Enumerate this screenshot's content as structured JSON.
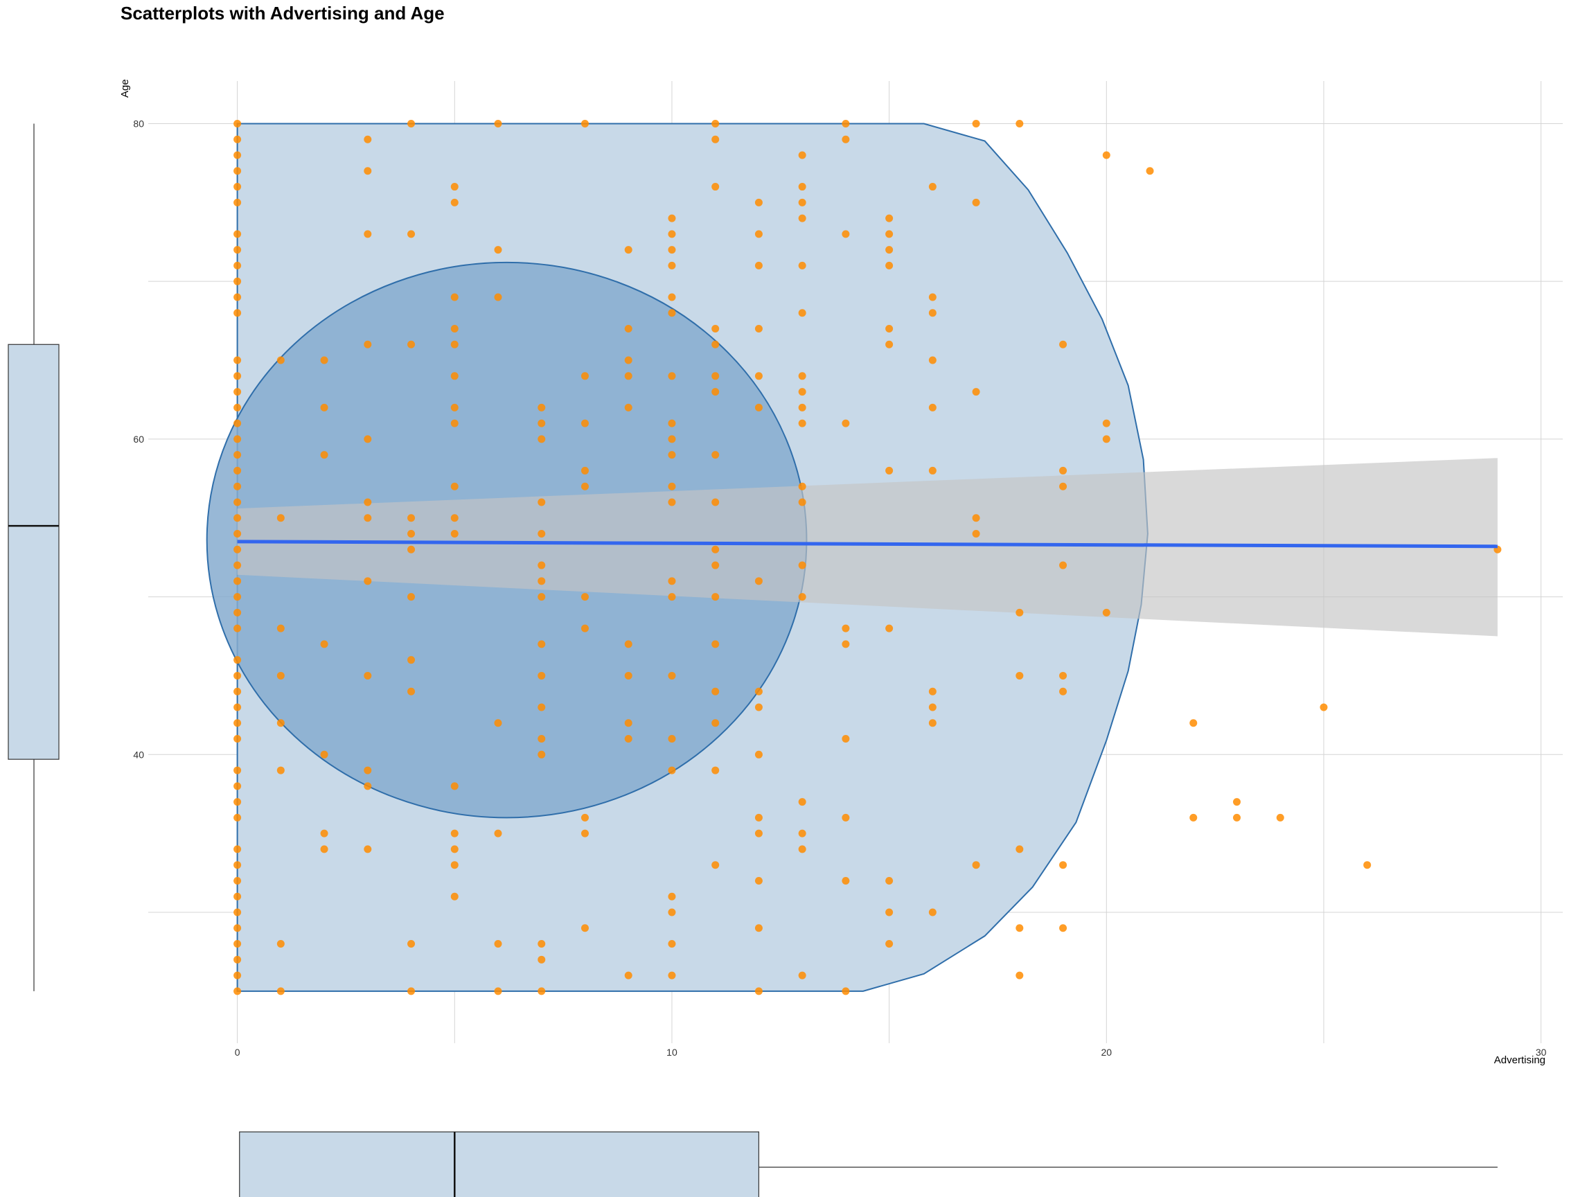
{
  "chart_data": {
    "type": "scatter",
    "title": "Scatterplots with Advertising and Age",
    "xlabel": "Advertising",
    "ylabel": "Age",
    "xlim": [
      -2.05,
      30.5
    ],
    "ylim": [
      21.7,
      82.7
    ],
    "x_ticks": [
      0,
      10,
      20,
      30
    ],
    "y_ticks": [
      40,
      60,
      80
    ],
    "x_grid": [
      0,
      5,
      10,
      15,
      20,
      25,
      30
    ],
    "y_grid": [
      30,
      40,
      50,
      60,
      70,
      80
    ],
    "grid": true,
    "legend": "none",
    "colors": {
      "points": "#ff8c00",
      "hull_fill": "#c8d9e8",
      "hull_stroke": "#2f6eaa",
      "ellipse_fill": "#86abcf",
      "regression_line": "#3366ee",
      "confidence_band": "#c4c4c4",
      "grid": "#d4d4d4",
      "boxplot_fill": "#c8d9e8"
    },
    "points": [
      [
        0,
        80
      ],
      [
        0,
        79
      ],
      [
        0,
        78
      ],
      [
        0,
        77
      ],
      [
        0,
        76
      ],
      [
        0,
        75
      ],
      [
        0,
        73
      ],
      [
        0,
        72
      ],
      [
        0,
        71
      ],
      [
        0,
        70
      ],
      [
        0,
        69
      ],
      [
        0,
        68
      ],
      [
        0,
        65
      ],
      [
        0,
        64
      ],
      [
        0,
        63
      ],
      [
        0,
        62
      ],
      [
        0,
        61
      ],
      [
        0,
        60
      ],
      [
        0,
        59
      ],
      [
        0,
        58
      ],
      [
        0,
        57
      ],
      [
        0,
        56
      ],
      [
        0,
        55
      ],
      [
        0,
        54
      ],
      [
        0,
        53
      ],
      [
        0,
        52
      ],
      [
        0,
        51
      ],
      [
        0,
        50
      ],
      [
        0,
        49
      ],
      [
        0,
        48
      ],
      [
        0,
        46
      ],
      [
        0,
        45
      ],
      [
        0,
        44
      ],
      [
        0,
        43
      ],
      [
        0,
        42
      ],
      [
        0,
        41
      ],
      [
        0,
        39
      ],
      [
        0,
        38
      ],
      [
        0,
        37
      ],
      [
        0,
        36
      ],
      [
        0,
        34
      ],
      [
        0,
        33
      ],
      [
        0,
        32
      ],
      [
        0,
        31
      ],
      [
        0,
        30
      ],
      [
        0,
        29
      ],
      [
        0,
        28
      ],
      [
        0,
        27
      ],
      [
        0,
        26
      ],
      [
        0,
        25
      ],
      [
        1,
        65
      ],
      [
        1,
        55
      ],
      [
        1,
        48
      ],
      [
        1,
        45
      ],
      [
        1,
        42
      ],
      [
        1,
        39
      ],
      [
        1,
        28
      ],
      [
        1,
        25
      ],
      [
        2,
        65
      ],
      [
        2,
        62
      ],
      [
        2,
        59
      ],
      [
        2,
        47
      ],
      [
        2,
        40
      ],
      [
        2,
        35
      ],
      [
        2,
        34
      ],
      [
        3,
        79
      ],
      [
        3,
        77
      ],
      [
        3,
        73
      ],
      [
        3,
        66
      ],
      [
        3,
        60
      ],
      [
        3,
        56
      ],
      [
        3,
        55
      ],
      [
        3,
        51
      ],
      [
        3,
        45
      ],
      [
        3,
        39
      ],
      [
        3,
        38
      ],
      [
        3,
        34
      ],
      [
        4,
        80
      ],
      [
        4,
        73
      ],
      [
        4,
        66
      ],
      [
        4,
        55
      ],
      [
        4,
        54
      ],
      [
        4,
        53
      ],
      [
        4,
        50
      ],
      [
        4,
        46
      ],
      [
        4,
        44
      ],
      [
        4,
        28
      ],
      [
        4,
        25
      ],
      [
        5,
        76
      ],
      [
        5,
        75
      ],
      [
        5,
        69
      ],
      [
        5,
        67
      ],
      [
        5,
        66
      ],
      [
        5,
        64
      ],
      [
        5,
        62
      ],
      [
        5,
        61
      ],
      [
        5,
        57
      ],
      [
        5,
        55
      ],
      [
        5,
        54
      ],
      [
        5,
        38
      ],
      [
        5,
        35
      ],
      [
        5,
        34
      ],
      [
        5,
        33
      ],
      [
        5,
        31
      ],
      [
        6,
        80
      ],
      [
        6,
        72
      ],
      [
        6,
        69
      ],
      [
        6,
        42
      ],
      [
        6,
        35
      ],
      [
        6,
        28
      ],
      [
        6,
        25
      ],
      [
        7,
        62
      ],
      [
        7,
        61
      ],
      [
        7,
        60
      ],
      [
        7,
        56
      ],
      [
        7,
        54
      ],
      [
        7,
        52
      ],
      [
        7,
        51
      ],
      [
        7,
        50
      ],
      [
        7,
        47
      ],
      [
        7,
        45
      ],
      [
        7,
        43
      ],
      [
        7,
        41
      ],
      [
        7,
        40
      ],
      [
        7,
        28
      ],
      [
        7,
        27
      ],
      [
        7,
        25
      ],
      [
        8,
        80
      ],
      [
        8,
        64
      ],
      [
        8,
        61
      ],
      [
        8,
        58
      ],
      [
        8,
        57
      ],
      [
        8,
        50
      ],
      [
        8,
        48
      ],
      [
        8,
        36
      ],
      [
        8,
        35
      ],
      [
        8,
        29
      ],
      [
        9,
        72
      ],
      [
        9,
        67
      ],
      [
        9,
        65
      ],
      [
        9,
        64
      ],
      [
        9,
        62
      ],
      [
        9,
        47
      ],
      [
        9,
        45
      ],
      [
        9,
        42
      ],
      [
        9,
        41
      ],
      [
        9,
        26
      ],
      [
        10,
        74
      ],
      [
        10,
        73
      ],
      [
        10,
        72
      ],
      [
        10,
        71
      ],
      [
        10,
        69
      ],
      [
        10,
        68
      ],
      [
        10,
        64
      ],
      [
        10,
        61
      ],
      [
        10,
        60
      ],
      [
        10,
        59
      ],
      [
        10,
        57
      ],
      [
        10,
        56
      ],
      [
        10,
        51
      ],
      [
        10,
        50
      ],
      [
        10,
        45
      ],
      [
        10,
        41
      ],
      [
        10,
        39
      ],
      [
        10,
        31
      ],
      [
        10,
        30
      ],
      [
        10,
        28
      ],
      [
        10,
        26
      ],
      [
        11,
        80
      ],
      [
        11,
        79
      ],
      [
        11,
        76
      ],
      [
        11,
        67
      ],
      [
        11,
        66
      ],
      [
        11,
        64
      ],
      [
        11,
        63
      ],
      [
        11,
        59
      ],
      [
        11,
        56
      ],
      [
        11,
        53
      ],
      [
        11,
        52
      ],
      [
        11,
        50
      ],
      [
        11,
        47
      ],
      [
        11,
        44
      ],
      [
        11,
        42
      ],
      [
        11,
        39
      ],
      [
        11,
        33
      ],
      [
        12,
        75
      ],
      [
        12,
        73
      ],
      [
        12,
        71
      ],
      [
        12,
        67
      ],
      [
        12,
        64
      ],
      [
        12,
        62
      ],
      [
        12,
        51
      ],
      [
        12,
        44
      ],
      [
        12,
        43
      ],
      [
        12,
        40
      ],
      [
        12,
        36
      ],
      [
        12,
        35
      ],
      [
        12,
        32
      ],
      [
        12,
        29
      ],
      [
        12,
        25
      ],
      [
        13,
        78
      ],
      [
        13,
        76
      ],
      [
        13,
        75
      ],
      [
        13,
        74
      ],
      [
        13,
        71
      ],
      [
        13,
        68
      ],
      [
        13,
        64
      ],
      [
        13,
        63
      ],
      [
        13,
        62
      ],
      [
        13,
        61
      ],
      [
        13,
        57
      ],
      [
        13,
        56
      ],
      [
        13,
        52
      ],
      [
        13,
        50
      ],
      [
        13,
        37
      ],
      [
        13,
        35
      ],
      [
        13,
        34
      ],
      [
        13,
        26
      ],
      [
        14,
        80
      ],
      [
        14,
        79
      ],
      [
        14,
        73
      ],
      [
        14,
        61
      ],
      [
        14,
        48
      ],
      [
        14,
        47
      ],
      [
        14,
        41
      ],
      [
        14,
        36
      ],
      [
        14,
        32
      ],
      [
        14,
        25
      ],
      [
        15,
        74
      ],
      [
        15,
        73
      ],
      [
        15,
        72
      ],
      [
        15,
        71
      ],
      [
        15,
        67
      ],
      [
        15,
        66
      ],
      [
        15,
        58
      ],
      [
        15,
        48
      ],
      [
        15,
        32
      ],
      [
        15,
        30
      ],
      [
        15,
        28
      ],
      [
        16,
        76
      ],
      [
        16,
        69
      ],
      [
        16,
        68
      ],
      [
        16,
        65
      ],
      [
        16,
        62
      ],
      [
        16,
        58
      ],
      [
        16,
        44
      ],
      [
        16,
        43
      ],
      [
        16,
        42
      ],
      [
        16,
        30
      ],
      [
        17,
        80
      ],
      [
        17,
        75
      ],
      [
        17,
        63
      ],
      [
        17,
        55
      ],
      [
        17,
        54
      ],
      [
        17,
        33
      ],
      [
        18,
        80
      ],
      [
        18,
        49
      ],
      [
        18,
        45
      ],
      [
        18,
        34
      ],
      [
        18,
        29
      ],
      [
        18,
        26
      ],
      [
        19,
        66
      ],
      [
        19,
        58
      ],
      [
        19,
        57
      ],
      [
        19,
        52
      ],
      [
        19,
        45
      ],
      [
        19,
        44
      ],
      [
        19,
        33
      ],
      [
        19,
        29
      ],
      [
        20,
        78
      ],
      [
        20,
        61
      ],
      [
        20,
        60
      ],
      [
        20,
        49
      ],
      [
        21,
        77
      ],
      [
        22,
        42
      ],
      [
        22,
        36
      ],
      [
        23,
        37
      ],
      [
        23,
        36
      ],
      [
        24,
        36
      ],
      [
        25,
        43
      ],
      [
        26,
        33
      ],
      [
        29,
        53
      ]
    ],
    "hull": [
      [
        0,
        25
      ],
      [
        14.4,
        25
      ],
      [
        15.8,
        26.1
      ],
      [
        17.2,
        28.5
      ],
      [
        18.3,
        31.6
      ],
      [
        19.3,
        35.7
      ],
      [
        20.0,
        40.9
      ],
      [
        20.5,
        45.3
      ],
      [
        20.8,
        49.5
      ],
      [
        20.95,
        54
      ],
      [
        20.85,
        58.7
      ],
      [
        20.5,
        63.4
      ],
      [
        19.9,
        67.6
      ],
      [
        19.1,
        71.8
      ],
      [
        18.2,
        75.8
      ],
      [
        17.2,
        78.9
      ],
      [
        15.8,
        80
      ],
      [
        0,
        80
      ]
    ],
    "ellipse": {
      "cx": 6.2,
      "cy": 53.6,
      "rx": 6.9,
      "ry": 17.6
    },
    "regression": {
      "x": [
        0,
        29
      ],
      "y": [
        53.5,
        53.2
      ]
    },
    "confidence_band": {
      "x": [
        0,
        29
      ],
      "lower": [
        51.4,
        47.5
      ],
      "upper": [
        55.6,
        58.8
      ]
    },
    "marginal_boxplot_y": {
      "min": 25,
      "q1": 39.7,
      "median": 54.5,
      "q3": 66,
      "max": 80
    },
    "marginal_boxplot_x": {
      "min": 0,
      "q1": 0.05,
      "median": 5,
      "q3": 12,
      "max": 29
    }
  }
}
